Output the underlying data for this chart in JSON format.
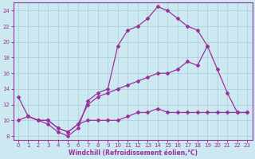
{
  "xlabel": "Windchill (Refroidissement éolien,°C)",
  "bg_color": "#cce8f0",
  "line_color": "#993399",
  "grid_color": "#aaccdd",
  "xlim": [
    -0.5,
    23.5
  ],
  "ylim": [
    7.5,
    25
  ],
  "yticks": [
    8,
    10,
    12,
    14,
    16,
    18,
    20,
    22,
    24
  ],
  "xticks": [
    0,
    1,
    2,
    3,
    4,
    5,
    6,
    7,
    8,
    9,
    10,
    11,
    12,
    13,
    14,
    15,
    16,
    17,
    18,
    19,
    20,
    21,
    22,
    23
  ],
  "curve_top": {
    "x": [
      0,
      1,
      2,
      3,
      4,
      5,
      6,
      7,
      8,
      9,
      10,
      11,
      12,
      13,
      14,
      15,
      16,
      17,
      18,
      19
    ],
    "y": [
      13,
      10.5,
      10,
      9.5,
      8.5,
      8,
      9,
      12.5,
      13.5,
      14,
      19.5,
      21.5,
      22,
      23,
      24.5,
      24,
      23,
      22,
      21.5,
      19.5
    ]
  },
  "curve_mid": {
    "x": [
      1,
      2,
      3,
      4,
      5,
      6,
      7,
      8,
      9,
      10,
      11,
      12,
      13,
      14,
      15,
      16,
      17,
      18,
      19,
      20,
      21,
      22,
      23
    ],
    "y": [
      10.5,
      10,
      10,
      9,
      8.5,
      9.5,
      12,
      13,
      13.5,
      14,
      14.5,
      15,
      15.5,
      16,
      16,
      16.5,
      17.5,
      17,
      19.5,
      16.5,
      13.5,
      11,
      11
    ]
  },
  "curve_bot": {
    "x": [
      0,
      1,
      2,
      3,
      4,
      5,
      6,
      7,
      8,
      9,
      10,
      11,
      12,
      13,
      14,
      15,
      16,
      17,
      18,
      19,
      20,
      21,
      22,
      23
    ],
    "y": [
      10,
      10.5,
      10,
      10,
      9,
      8.5,
      9.5,
      10,
      10,
      10,
      10,
      10.5,
      11,
      11,
      11.5,
      11,
      11,
      11,
      11,
      11,
      11,
      11,
      11,
      11
    ]
  }
}
